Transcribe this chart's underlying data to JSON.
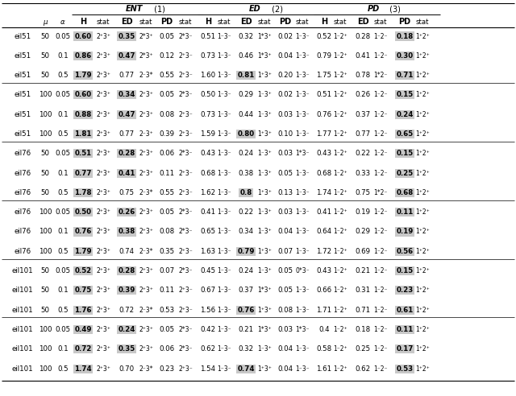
{
  "rows": [
    [
      "eil51",
      "50",
      "0.05",
      "0.60",
      "2⁺3⁺",
      "0.35",
      "2*3⁺",
      "0.05",
      "2*3⁻",
      "0.51",
      "1⁻3⁻",
      "0.32",
      "1*3⁺",
      "0.02",
      "1⁻3⁻",
      "0.52",
      "1⁻2⁺",
      "0.28",
      "1⁻2⁻",
      "0.18",
      "1⁺2⁺"
    ],
    [
      "eil51",
      "50",
      "0.1",
      "0.86",
      "2⁺3⁺",
      "0.47",
      "2*3⁺",
      "0.12",
      "2⁺3⁻",
      "0.73",
      "1⁻3⁻",
      "0.46",
      "1*3⁺",
      "0.04",
      "1⁻3⁻",
      "0.79",
      "1⁻2⁺",
      "0.41",
      "1⁻2⁻",
      "0.30",
      "1⁺2⁺"
    ],
    [
      "eil51",
      "50",
      "0.5",
      "1.79",
      "2⁺3⁺",
      "0.77",
      "2⁻3*",
      "0.55",
      "2⁺3⁻",
      "1.60",
      "1⁻3⁻",
      "0.81",
      "1⁺3⁺",
      "0.20",
      "1⁻3⁻",
      "1.75",
      "1⁻2⁺",
      "0.78",
      "1*2⁻",
      "0.71",
      "1⁺2⁺"
    ],
    [
      "eil51",
      "100",
      "0.05",
      "0.60",
      "2⁺3⁺",
      "0.34",
      "2⁺3⁺",
      "0.05",
      "2*3⁻",
      "0.50",
      "1⁻3⁻",
      "0.29",
      "1⁻3⁺",
      "0.02",
      "1⁻3⁻",
      "0.51",
      "1⁻2⁺",
      "0.26",
      "1⁻2⁻",
      "0.15",
      "1⁺2⁺"
    ],
    [
      "eil51",
      "100",
      "0.1",
      "0.88",
      "2⁺3⁺",
      "0.47",
      "2⁺3⁺",
      "0.08",
      "2⁺3⁻",
      "0.73",
      "1⁻3⁻",
      "0.44",
      "1⁻3⁺",
      "0.03",
      "1⁻3⁻",
      "0.76",
      "1⁻2⁺",
      "0.37",
      "1⁻2⁻",
      "0.24",
      "1⁺2⁺"
    ],
    [
      "eil51",
      "100",
      "0.5",
      "1.81",
      "2⁺3⁺",
      "0.77",
      "2⁻3⁺",
      "0.39",
      "2⁺3⁻",
      "1.59",
      "1⁻3⁻",
      "0.80",
      "1⁺3⁺",
      "0.10",
      "1⁻3⁻",
      "1.77",
      "1⁻2⁺",
      "0.77",
      "1⁻2⁻",
      "0.65",
      "1⁺2⁺"
    ],
    [
      "eil76",
      "50",
      "0.05",
      "0.51",
      "2⁺3⁺",
      "0.28",
      "2⁺3⁺",
      "0.06",
      "2*3⁻",
      "0.43",
      "1⁻3⁻",
      "0.24",
      "1⁻3⁺",
      "0.03",
      "1*3⁻",
      "0.43",
      "1⁻2⁺",
      "0.22",
      "1⁻2⁻",
      "0.15",
      "1⁺2⁺"
    ],
    [
      "eil76",
      "50",
      "0.1",
      "0.77",
      "2⁺3⁺",
      "0.41",
      "2⁺3⁺",
      "0.11",
      "2⁺3⁻",
      "0.68",
      "1⁻3⁻",
      "0.38",
      "1⁻3⁺",
      "0.05",
      "1⁻3⁻",
      "0.68",
      "1⁻2⁺",
      "0.33",
      "1⁻2⁻",
      "0.25",
      "1⁺2⁺"
    ],
    [
      "eil76",
      "50",
      "0.5",
      "1.78",
      "2⁺3⁺",
      "0.75",
      "2⁻3*",
      "0.55",
      "2⁺3⁻",
      "1.62",
      "1⁻3⁻",
      "0.8",
      "1⁺3⁺",
      "0.13",
      "1⁻3⁻",
      "1.74",
      "1⁻2⁺",
      "0.75",
      "1*2⁻",
      "0.68",
      "1⁺2⁺"
    ],
    [
      "eil76",
      "100",
      "0.05",
      "0.50",
      "2⁺3⁺",
      "0.26",
      "2⁺3⁺",
      "0.05",
      "2*3⁻",
      "0.41",
      "1⁻3⁻",
      "0.22",
      "1⁻3⁺",
      "0.03",
      "1⁻3⁻",
      "0.41",
      "1⁻2⁺",
      "0.19",
      "1⁻2⁻",
      "0.11",
      "1⁺2⁺"
    ],
    [
      "eil76",
      "100",
      "0.1",
      "0.76",
      "2⁺3⁺",
      "0.38",
      "2⁺3⁺",
      "0.08",
      "2*3⁻",
      "0.65",
      "1⁻3⁻",
      "0.34",
      "1⁻3⁺",
      "0.04",
      "1⁻3⁻",
      "0.64",
      "1⁻2⁺",
      "0.29",
      "1⁻2⁻",
      "0.19",
      "1⁺2⁺"
    ],
    [
      "eil76",
      "100",
      "0.5",
      "1.79",
      "2⁺3⁺",
      "0.74",
      "2⁻3*",
      "0.35",
      "2⁺3⁻",
      "1.63",
      "1⁻3⁻",
      "0.79",
      "1⁺3⁺",
      "0.07",
      "1⁻3⁻",
      "1.72",
      "1⁻2⁺",
      "0.69",
      "1⁻2⁻",
      "0.56",
      "1⁺2⁺"
    ],
    [
      "eil101",
      "50",
      "0.05",
      "0.52",
      "2⁺3⁺",
      "0.28",
      "2⁺3⁺",
      "0.07",
      "2*3⁻",
      "0.45",
      "1⁻3⁻",
      "0.24",
      "1⁻3⁺",
      "0.05",
      "0*3⁻",
      "0.43",
      "1⁻2⁺",
      "0.21",
      "1⁻2⁻",
      "0.15",
      "1⁺2⁺"
    ],
    [
      "eil101",
      "50",
      "0.1",
      "0.75",
      "2⁺3⁺",
      "0.39",
      "2⁺3⁺",
      "0.11",
      "2⁺3⁻",
      "0.67",
      "1⁻3⁻",
      "0.37",
      "1*3⁺",
      "0.05",
      "1⁻3⁻",
      "0.66",
      "1⁻2⁺",
      "0.31",
      "1⁻2⁻",
      "0.23",
      "1⁺2⁺"
    ],
    [
      "eil101",
      "50",
      "0.5",
      "1.76",
      "2⁺3⁺",
      "0.72",
      "2⁻3*",
      "0.53",
      "2⁺3⁻",
      "1.56",
      "1⁻3⁻",
      "0.76",
      "1⁺3⁺",
      "0.08",
      "1⁻3⁻",
      "1.71",
      "1⁻2⁺",
      "0.71",
      "1⁻2⁻",
      "0.61",
      "1⁺2⁺"
    ],
    [
      "eil101",
      "100",
      "0.05",
      "0.49",
      "2⁺3⁺",
      "0.24",
      "2⁺3⁺",
      "0.05",
      "2*3⁻",
      "0.42",
      "1⁻3⁻",
      "0.21",
      "1*3⁺",
      "0.03",
      "1*3⁻",
      "0.4",
      "1⁻2⁺",
      "0.18",
      "1⁻2⁻",
      "0.11",
      "1⁺2⁺"
    ],
    [
      "eil101",
      "100",
      "0.1",
      "0.72",
      "2⁺3⁺",
      "0.35",
      "2⁺3⁺",
      "0.06",
      "2*3⁻",
      "0.62",
      "1⁻3⁻",
      "0.32",
      "1⁻3⁺",
      "0.04",
      "1⁻3⁻",
      "0.58",
      "1⁻2⁺",
      "0.25",
      "1⁻2⁻",
      "0.17",
      "1⁺2⁺"
    ],
    [
      "eil101",
      "100",
      "0.5",
      "1.74",
      "2⁺3⁺",
      "0.70",
      "2⁻3*",
      "0.23",
      "2⁺3⁻",
      "1.54",
      "1⁻3⁻",
      "0.74",
      "1⁺3⁺",
      "0.04",
      "1⁻3⁻",
      "1.61",
      "1⁻2⁺",
      "0.62",
      "1⁻2⁻",
      "0.53",
      "1⁺2⁺"
    ]
  ],
  "separator_rows": [
    3,
    6,
    9,
    12,
    15
  ],
  "bg_color": "#c8c8c8"
}
